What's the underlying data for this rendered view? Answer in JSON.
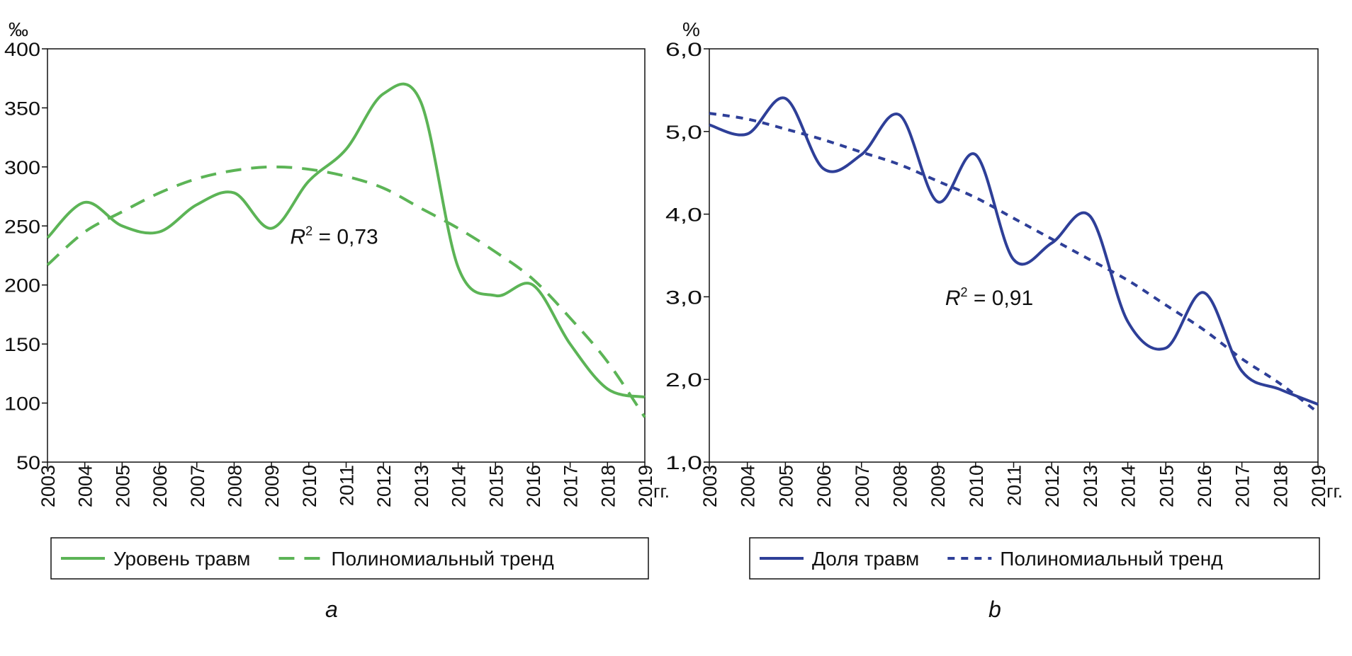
{
  "chart_data": [
    {
      "type": "line",
      "panel_label": "a",
      "yunit": "‰",
      "xunit": "гг.",
      "x": [
        2003,
        2004,
        2005,
        2006,
        2007,
        2008,
        2009,
        2010,
        2011,
        2012,
        2013,
        2014,
        2015,
        2016,
        2017,
        2018,
        2019
      ],
      "ylim": [
        50,
        400
      ],
      "yticks": [
        50,
        100,
        150,
        200,
        250,
        300,
        350,
        400
      ],
      "ytick_labels": [
        "50",
        "100",
        "150",
        "200",
        "250",
        "300",
        "350",
        "400"
      ],
      "color": "#5cb456",
      "series": [
        {
          "name": "Уровень травм",
          "style": "solid",
          "values": [
            240,
            270,
            250,
            245,
            268,
            278,
            248,
            288,
            315,
            362,
            355,
            215,
            191,
            200,
            150,
            112,
            105
          ]
        },
        {
          "name": "Полиномиальный тренд",
          "style": "dashed",
          "values": [
            217,
            245,
            262,
            278,
            290,
            297,
            300,
            298,
            292,
            282,
            265,
            248,
            228,
            205,
            172,
            135,
            88
          ]
        }
      ],
      "annotation": {
        "text_prefix": "R",
        "sup": "2",
        "text": " = 0,73",
        "x": 2009.5,
        "y": 235
      }
    },
    {
      "type": "line",
      "panel_label": "b",
      "yunit": "%",
      "xunit": "гг.",
      "x": [
        2003,
        2004,
        2005,
        2006,
        2007,
        2008,
        2009,
        2010,
        2011,
        2012,
        2013,
        2014,
        2015,
        2016,
        2017,
        2018,
        2019
      ],
      "ylim": [
        1,
        6
      ],
      "yticks": [
        1,
        2,
        3,
        4,
        5,
        6
      ],
      "ytick_labels": [
        "1,0",
        "2,0",
        "3,0",
        "4,0",
        "5,0",
        "6,0"
      ],
      "color": "#2e3f98",
      "series": [
        {
          "name": "Доля травм",
          "style": "solid",
          "values": [
            5.08,
            4.97,
            5.4,
            4.55,
            4.72,
            5.2,
            4.15,
            4.72,
            3.45,
            3.65,
            3.98,
            2.7,
            2.38,
            3.05,
            2.1,
            1.88,
            1.7
          ]
        },
        {
          "name": "Полиномиальный тренд",
          "style": "dotted",
          "values": [
            5.22,
            5.15,
            5.03,
            4.9,
            4.75,
            4.6,
            4.4,
            4.2,
            3.95,
            3.7,
            3.45,
            3.2,
            2.9,
            2.6,
            2.25,
            1.95,
            1.6
          ]
        }
      ],
      "annotation": {
        "text_prefix": "R",
        "sup": "2",
        "text": " = 0,91",
        "x": 2009.2,
        "y": 2.9
      }
    }
  ]
}
